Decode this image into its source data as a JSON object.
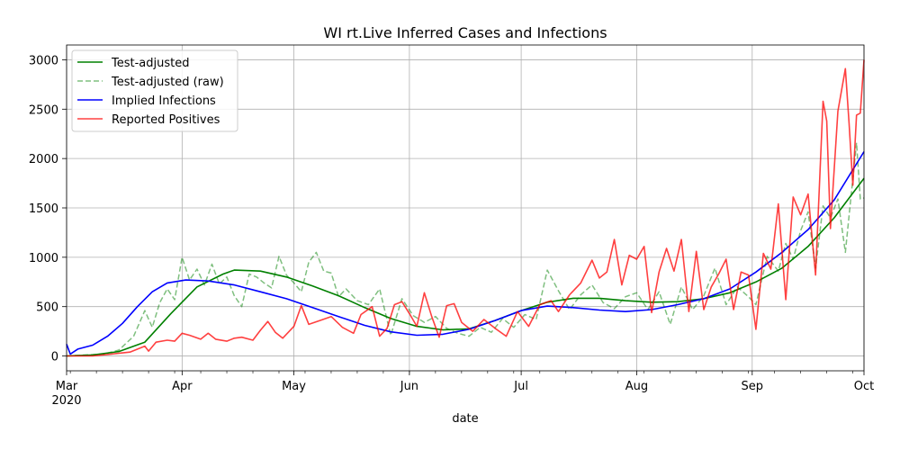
{
  "chart_data": {
    "type": "line",
    "title": "WI rt.Live Inferred Cases and Infections",
    "xlabel": "date",
    "ylabel": "",
    "xlim": [
      "2020-03-01",
      "2020-10-01"
    ],
    "ylim": [
      -150,
      3150
    ],
    "grid": true,
    "legend_position": "top-left",
    "x_ticks": [
      {
        "date": "2020-03-01",
        "label": "Mar",
        "sublabel": "2020"
      },
      {
        "date": "2020-04-01",
        "label": "Apr",
        "sublabel": ""
      },
      {
        "date": "2020-05-01",
        "label": "May",
        "sublabel": ""
      },
      {
        "date": "2020-06-01",
        "label": "Jun",
        "sublabel": ""
      },
      {
        "date": "2020-07-01",
        "label": "Jul",
        "sublabel": ""
      },
      {
        "date": "2020-08-01",
        "label": "Aug",
        "sublabel": ""
      },
      {
        "date": "2020-09-01",
        "label": "Sep",
        "sublabel": ""
      },
      {
        "date": "2020-10-01",
        "label": "Oct",
        "sublabel": ""
      }
    ],
    "y_ticks": [
      0,
      500,
      1000,
      1500,
      2000,
      2500,
      3000
    ],
    "series": [
      {
        "name": "Test-adjusted",
        "color": "#008000",
        "style": "solid",
        "points": [
          [
            "2020-03-01",
            0
          ],
          [
            "2020-03-08",
            10
          ],
          [
            "2020-03-15",
            45
          ],
          [
            "2020-03-22",
            140
          ],
          [
            "2020-03-29",
            430
          ],
          [
            "2020-04-05",
            700
          ],
          [
            "2020-04-12",
            830
          ],
          [
            "2020-04-15",
            870
          ],
          [
            "2020-04-22",
            860
          ],
          [
            "2020-04-29",
            800
          ],
          [
            "2020-05-06",
            710
          ],
          [
            "2020-05-13",
            610
          ],
          [
            "2020-05-20",
            490
          ],
          [
            "2020-05-27",
            380
          ],
          [
            "2020-06-03",
            300
          ],
          [
            "2020-06-10",
            265
          ],
          [
            "2020-06-17",
            275
          ],
          [
            "2020-06-24",
            360
          ],
          [
            "2020-07-01",
            460
          ],
          [
            "2020-07-08",
            545
          ],
          [
            "2020-07-15",
            585
          ],
          [
            "2020-07-22",
            585
          ],
          [
            "2020-07-29",
            560
          ],
          [
            "2020-08-05",
            545
          ],
          [
            "2020-08-12",
            550
          ],
          [
            "2020-08-19",
            580
          ],
          [
            "2020-08-26",
            640
          ],
          [
            "2020-09-02",
            750
          ],
          [
            "2020-09-09",
            890
          ],
          [
            "2020-09-16",
            1110
          ],
          [
            "2020-09-23",
            1400
          ],
          [
            "2020-10-01",
            1800
          ]
        ]
      },
      {
        "name": "Test-adjusted (raw)",
        "color": "#008000",
        "style": "dashed",
        "points": [
          [
            "2020-03-01",
            0
          ],
          [
            "2020-03-06",
            10
          ],
          [
            "2020-03-11",
            20
          ],
          [
            "2020-03-15",
            60
          ],
          [
            "2020-03-19",
            200
          ],
          [
            "2020-03-22",
            460
          ],
          [
            "2020-03-24",
            290
          ],
          [
            "2020-03-26",
            540
          ],
          [
            "2020-03-28",
            680
          ],
          [
            "2020-03-30",
            570
          ],
          [
            "2020-04-01",
            1000
          ],
          [
            "2020-04-03",
            770
          ],
          [
            "2020-04-05",
            880
          ],
          [
            "2020-04-07",
            720
          ],
          [
            "2020-04-09",
            930
          ],
          [
            "2020-04-11",
            730
          ],
          [
            "2020-04-13",
            800
          ],
          [
            "2020-04-15",
            610
          ],
          [
            "2020-04-17",
            500
          ],
          [
            "2020-04-19",
            830
          ],
          [
            "2020-04-21",
            800
          ],
          [
            "2020-04-23",
            740
          ],
          [
            "2020-04-25",
            690
          ],
          [
            "2020-04-27",
            1010
          ],
          [
            "2020-04-29",
            820
          ],
          [
            "2020-05-01",
            740
          ],
          [
            "2020-05-03",
            650
          ],
          [
            "2020-05-05",
            950
          ],
          [
            "2020-05-07",
            1050
          ],
          [
            "2020-05-09",
            860
          ],
          [
            "2020-05-11",
            840
          ],
          [
            "2020-05-13",
            600
          ],
          [
            "2020-05-15",
            680
          ],
          [
            "2020-05-18",
            560
          ],
          [
            "2020-05-21",
            520
          ],
          [
            "2020-05-24",
            680
          ],
          [
            "2020-05-27",
            210
          ],
          [
            "2020-05-30",
            580
          ],
          [
            "2020-06-02",
            410
          ],
          [
            "2020-06-05",
            340
          ],
          [
            "2020-06-08",
            400
          ],
          [
            "2020-06-11",
            280
          ],
          [
            "2020-06-14",
            230
          ],
          [
            "2020-06-17",
            200
          ],
          [
            "2020-06-20",
            290
          ],
          [
            "2020-06-23",
            240
          ],
          [
            "2020-06-26",
            380
          ],
          [
            "2020-06-29",
            290
          ],
          [
            "2020-07-02",
            420
          ],
          [
            "2020-07-05",
            370
          ],
          [
            "2020-07-08",
            870
          ],
          [
            "2020-07-11",
            660
          ],
          [
            "2020-07-14",
            470
          ],
          [
            "2020-07-17",
            620
          ],
          [
            "2020-07-20",
            720
          ],
          [
            "2020-07-23",
            540
          ],
          [
            "2020-07-26",
            480
          ],
          [
            "2020-07-29",
            600
          ],
          [
            "2020-08-01",
            640
          ],
          [
            "2020-08-04",
            470
          ],
          [
            "2020-08-07",
            650
          ],
          [
            "2020-08-10",
            320
          ],
          [
            "2020-08-13",
            700
          ],
          [
            "2020-08-16",
            470
          ],
          [
            "2020-08-19",
            610
          ],
          [
            "2020-08-22",
            890
          ],
          [
            "2020-08-25",
            520
          ],
          [
            "2020-08-28",
            700
          ],
          [
            "2020-08-31",
            600
          ],
          [
            "2020-09-02",
            520
          ],
          [
            "2020-09-05",
            1010
          ],
          [
            "2020-09-08",
            860
          ],
          [
            "2020-09-10",
            1140
          ],
          [
            "2020-09-12",
            980
          ],
          [
            "2020-09-14",
            1270
          ],
          [
            "2020-09-16",
            1460
          ],
          [
            "2020-09-18",
            890
          ],
          [
            "2020-09-20",
            1520
          ],
          [
            "2020-09-22",
            1400
          ],
          [
            "2020-09-24",
            1590
          ],
          [
            "2020-09-26",
            1050
          ],
          [
            "2020-09-27",
            1420
          ],
          [
            "2020-09-29",
            2160
          ],
          [
            "2020-09-30",
            1590
          ],
          [
            "2020-10-01",
            1600
          ]
        ]
      },
      {
        "name": "Implied Infections",
        "color": "#0000ff",
        "style": "solid",
        "points": [
          [
            "2020-03-01",
            120
          ],
          [
            "2020-03-02",
            20
          ],
          [
            "2020-03-04",
            70
          ],
          [
            "2020-03-08",
            110
          ],
          [
            "2020-03-12",
            200
          ],
          [
            "2020-03-16",
            330
          ],
          [
            "2020-03-20",
            500
          ],
          [
            "2020-03-24",
            650
          ],
          [
            "2020-03-28",
            740
          ],
          [
            "2020-04-02",
            770
          ],
          [
            "2020-04-08",
            760
          ],
          [
            "2020-04-15",
            720
          ],
          [
            "2020-04-22",
            650
          ],
          [
            "2020-04-29",
            580
          ],
          [
            "2020-05-06",
            490
          ],
          [
            "2020-05-13",
            400
          ],
          [
            "2020-05-20",
            310
          ],
          [
            "2020-05-27",
            245
          ],
          [
            "2020-06-03",
            210
          ],
          [
            "2020-06-10",
            220
          ],
          [
            "2020-06-17",
            270
          ],
          [
            "2020-06-24",
            360
          ],
          [
            "2020-07-01",
            460
          ],
          [
            "2020-07-08",
            505
          ],
          [
            "2020-07-15",
            490
          ],
          [
            "2020-07-22",
            465
          ],
          [
            "2020-07-29",
            450
          ],
          [
            "2020-08-05",
            470
          ],
          [
            "2020-08-12",
            520
          ],
          [
            "2020-08-19",
            580
          ],
          [
            "2020-08-26",
            680
          ],
          [
            "2020-09-02",
            850
          ],
          [
            "2020-09-09",
            1050
          ],
          [
            "2020-09-16",
            1280
          ],
          [
            "2020-09-23",
            1580
          ],
          [
            "2020-10-01",
            2070
          ]
        ]
      },
      {
        "name": "Reported Positives",
        "color": "#ff0000",
        "style": "solid",
        "points": [
          [
            "2020-03-01",
            0
          ],
          [
            "2020-03-08",
            0
          ],
          [
            "2020-03-13",
            20
          ],
          [
            "2020-03-18",
            40
          ],
          [
            "2020-03-22",
            100
          ],
          [
            "2020-03-23",
            50
          ],
          [
            "2020-03-25",
            140
          ],
          [
            "2020-03-28",
            160
          ],
          [
            "2020-03-30",
            150
          ],
          [
            "2020-04-01",
            230
          ],
          [
            "2020-04-03",
            210
          ],
          [
            "2020-04-06",
            170
          ],
          [
            "2020-04-08",
            230
          ],
          [
            "2020-04-10",
            170
          ],
          [
            "2020-04-13",
            150
          ],
          [
            "2020-04-15",
            180
          ],
          [
            "2020-04-17",
            190
          ],
          [
            "2020-04-20",
            160
          ],
          [
            "2020-04-22",
            260
          ],
          [
            "2020-04-24",
            350
          ],
          [
            "2020-04-26",
            240
          ],
          [
            "2020-04-28",
            180
          ],
          [
            "2020-05-01",
            300
          ],
          [
            "2020-05-03",
            510
          ],
          [
            "2020-05-05",
            320
          ],
          [
            "2020-05-08",
            360
          ],
          [
            "2020-05-11",
            400
          ],
          [
            "2020-05-14",
            290
          ],
          [
            "2020-05-17",
            230
          ],
          [
            "2020-05-19",
            420
          ],
          [
            "2020-05-22",
            500
          ],
          [
            "2020-05-24",
            200
          ],
          [
            "2020-05-26",
            280
          ],
          [
            "2020-05-28",
            520
          ],
          [
            "2020-05-30",
            550
          ],
          [
            "2020-06-01",
            430
          ],
          [
            "2020-06-03",
            300
          ],
          [
            "2020-06-05",
            640
          ],
          [
            "2020-06-07",
            400
          ],
          [
            "2020-06-09",
            190
          ],
          [
            "2020-06-11",
            510
          ],
          [
            "2020-06-13",
            530
          ],
          [
            "2020-06-15",
            340
          ],
          [
            "2020-06-18",
            250
          ],
          [
            "2020-06-21",
            370
          ],
          [
            "2020-06-24",
            280
          ],
          [
            "2020-06-27",
            200
          ],
          [
            "2020-06-30",
            450
          ],
          [
            "2020-07-03",
            300
          ],
          [
            "2020-07-06",
            520
          ],
          [
            "2020-07-09",
            560
          ],
          [
            "2020-07-11",
            450
          ],
          [
            "2020-07-14",
            620
          ],
          [
            "2020-07-17",
            740
          ],
          [
            "2020-07-20",
            970
          ],
          [
            "2020-07-22",
            790
          ],
          [
            "2020-07-24",
            850
          ],
          [
            "2020-07-26",
            1180
          ],
          [
            "2020-07-28",
            720
          ],
          [
            "2020-07-30",
            1020
          ],
          [
            "2020-08-01",
            980
          ],
          [
            "2020-08-03",
            1110
          ],
          [
            "2020-08-05",
            440
          ],
          [
            "2020-08-07",
            850
          ],
          [
            "2020-08-09",
            1090
          ],
          [
            "2020-08-11",
            860
          ],
          [
            "2020-08-13",
            1180
          ],
          [
            "2020-08-15",
            450
          ],
          [
            "2020-08-17",
            1060
          ],
          [
            "2020-08-19",
            470
          ],
          [
            "2020-08-21",
            700
          ],
          [
            "2020-08-23",
            830
          ],
          [
            "2020-08-25",
            980
          ],
          [
            "2020-08-27",
            470
          ],
          [
            "2020-08-29",
            850
          ],
          [
            "2020-08-31",
            820
          ],
          [
            "2020-09-02",
            270
          ],
          [
            "2020-09-04",
            1040
          ],
          [
            "2020-09-06",
            880
          ],
          [
            "2020-09-08",
            1540
          ],
          [
            "2020-09-10",
            570
          ],
          [
            "2020-09-12",
            1610
          ],
          [
            "2020-09-14",
            1430
          ],
          [
            "2020-09-16",
            1640
          ],
          [
            "2020-09-18",
            820
          ],
          [
            "2020-09-20",
            2580
          ],
          [
            "2020-09-21",
            2380
          ],
          [
            "2020-09-22",
            1290
          ],
          [
            "2020-09-24",
            2480
          ],
          [
            "2020-09-26",
            2910
          ],
          [
            "2020-09-27",
            2360
          ],
          [
            "2020-09-28",
            1730
          ],
          [
            "2020-09-29",
            2440
          ],
          [
            "2020-09-30",
            2460
          ],
          [
            "2020-10-01",
            3000
          ]
        ]
      }
    ]
  }
}
